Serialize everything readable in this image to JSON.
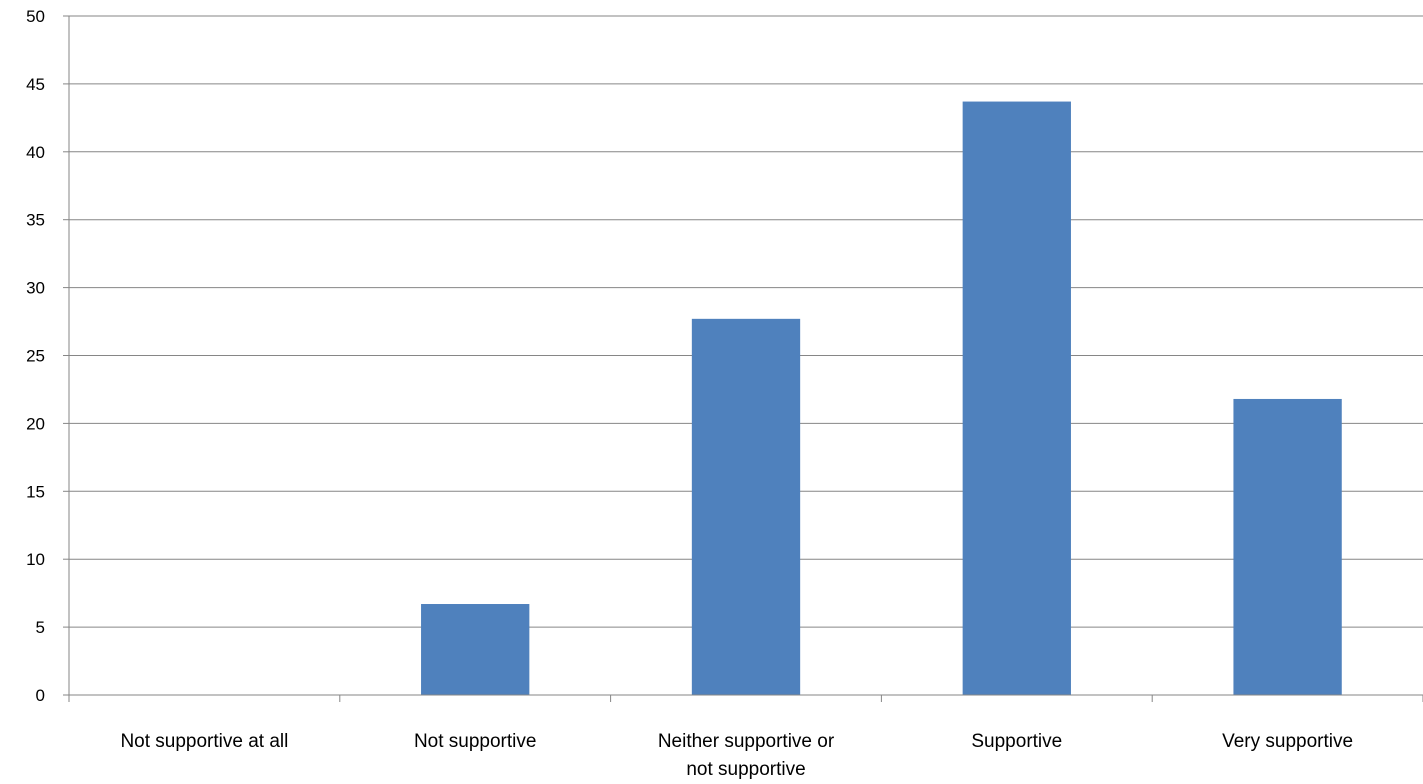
{
  "chart_data": {
    "type": "bar",
    "title": "",
    "xlabel": "",
    "ylabel": "",
    "categories": [
      [
        "Not supportive at all"
      ],
      [
        "Not supportive"
      ],
      [
        "Neither supportive or",
        "not supportive"
      ],
      [
        "Supportive"
      ],
      [
        "Very supportive"
      ]
    ],
    "values": [
      0,
      6.7,
      27.7,
      43.7,
      21.8
    ],
    "ylim": [
      0,
      50
    ],
    "yticks": [
      0,
      5,
      10,
      15,
      20,
      25,
      30,
      35,
      40,
      45,
      50
    ],
    "grid": true,
    "legend": "none",
    "colors": {
      "bar": "#4F81BD",
      "grid": "#868686",
      "axis": "#868686"
    }
  }
}
